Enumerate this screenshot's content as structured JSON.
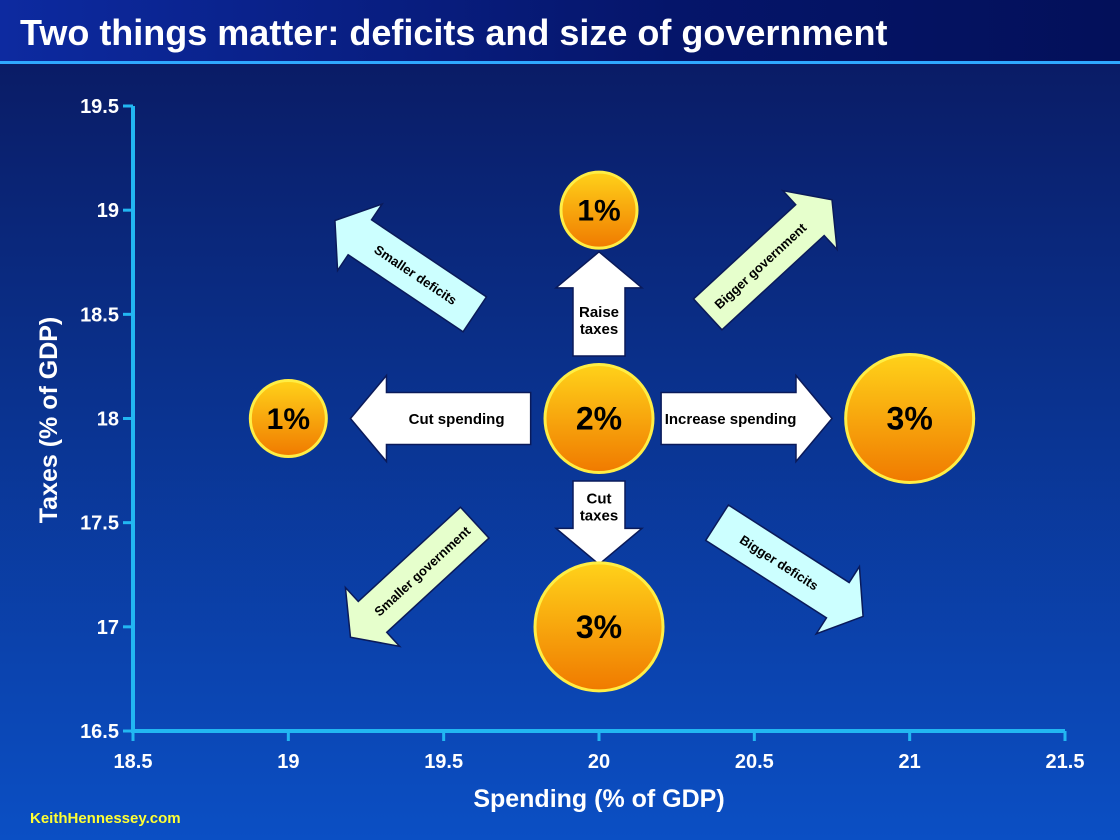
{
  "title": "Two things matter:  deficits and size of government",
  "footer": "KeithHennessey.com",
  "colors": {
    "background_top": "#0a1c66",
    "background_bottom": "#0b4fc4",
    "axis": "#22b7f2",
    "bubble_top": "#ffd21a",
    "bubble_bottom": "#f07a00",
    "bubble_edge": "#ffee44",
    "white_arrow": "#ffffff",
    "cyan_arrow": "#ccffff",
    "green_arrow": "#e6ffcc",
    "footer": "#ffff33"
  },
  "chart_data": {
    "type": "scatter",
    "xlabel": "Spending (% of GDP)",
    "ylabel": "Taxes (% of GDP)",
    "xlim": [
      18.5,
      21.5
    ],
    "ylim": [
      16.5,
      19.5
    ],
    "x_ticks": [
      "18.5",
      "19",
      "19.5",
      "20",
      "20.5",
      "21",
      "21.5"
    ],
    "y_ticks": [
      "19.5",
      "19",
      "18.5",
      "18",
      "17.5",
      "17",
      "16.5"
    ],
    "grid": false,
    "points": [
      {
        "x": 20,
        "y": 18,
        "label": "2%",
        "size": 2
      },
      {
        "x": 20,
        "y": 19,
        "label": "1%",
        "size": 1
      },
      {
        "x": 19,
        "y": 18,
        "label": "1%",
        "size": 1
      },
      {
        "x": 21,
        "y": 18,
        "label": "3%",
        "size": 3
      },
      {
        "x": 20,
        "y": 17,
        "label": "3%",
        "size": 3
      }
    ],
    "arrows": [
      {
        "label": "Raise taxes",
        "lines": [
          "Raise",
          "taxes"
        ],
        "from": [
          20,
          18.3
        ],
        "to": [
          20,
          18.8
        ],
        "style": "white"
      },
      {
        "label": "Cut taxes",
        "lines": [
          "Cut",
          "taxes"
        ],
        "from": [
          20,
          17.7
        ],
        "to": [
          20,
          17.3
        ],
        "style": "white"
      },
      {
        "label": "Cut spending",
        "lines": [
          "Cut spending"
        ],
        "from": [
          19.78,
          18
        ],
        "to": [
          19.2,
          18
        ],
        "style": "white"
      },
      {
        "label": "Increase spending",
        "lines": [
          "Increase spending"
        ],
        "from": [
          20.2,
          18
        ],
        "to": [
          20.75,
          18
        ],
        "style": "white"
      },
      {
        "label": "Smaller deficits",
        "lines": [
          "Smaller deficits"
        ],
        "from": [
          19.6,
          18.5
        ],
        "to": [
          19.15,
          18.95
        ],
        "style": "cyan"
      },
      {
        "label": "Bigger government",
        "lines": [
          "Bigger government"
        ],
        "from": [
          20.35,
          18.5
        ],
        "to": [
          20.75,
          19.05
        ],
        "style": "green"
      },
      {
        "label": "Smaller government",
        "lines": [
          "Smaller government"
        ],
        "from": [
          19.6,
          17.5
        ],
        "to": [
          19.2,
          16.95
        ],
        "style": "green"
      },
      {
        "label": "Bigger deficits",
        "lines": [
          "Bigger deficits"
        ],
        "from": [
          20.38,
          17.5
        ],
        "to": [
          20.85,
          17.05
        ],
        "style": "cyan"
      }
    ]
  }
}
